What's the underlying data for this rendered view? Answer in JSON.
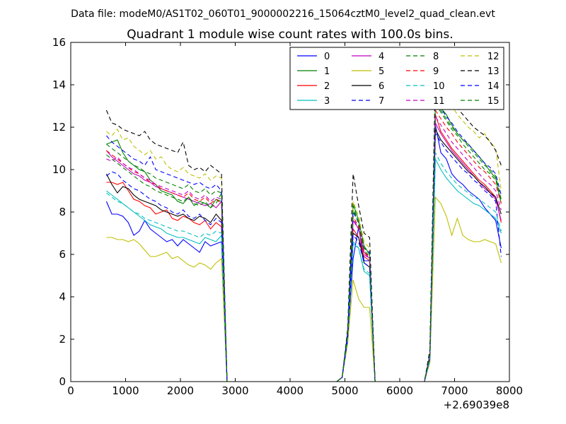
{
  "suptitle": "Data file: modeM0/AS1T02_060T01_9000002216_15064cztM0_level2_quad_clean.evt",
  "chart_data": {
    "type": "line",
    "title": "Quadrant 1 module wise count rates with 100.0s bins.",
    "xlabel": "",
    "ylabel": "",
    "x_offset_label": "+2.69039e8",
    "xlim": [
      0,
      8000
    ],
    "ylim": [
      0,
      16
    ],
    "xticks": [
      "0",
      "1000",
      "2000",
      "3000",
      "4000",
      "5000",
      "6000",
      "7000",
      "8000"
    ],
    "yticks": [
      "0",
      "2",
      "4",
      "6",
      "8",
      "10",
      "12",
      "14",
      "16"
    ],
    "legend_position": "top-right",
    "colors": [
      "#0000ff",
      "#008000",
      "#ff0000",
      "#00bfbf",
      "#bf00bf",
      "#bfbf00",
      "#000000"
    ],
    "segments": [
      {
        "start": 650,
        "count": 22
      },
      {
        "start": 4950,
        "count": 6
      },
      {
        "start": 6550,
        "count": 14
      }
    ],
    "series": [
      {
        "name": "0",
        "values": [
          8.5,
          7.9,
          7.9,
          7.8,
          7.5,
          6.9,
          7.1,
          7.6,
          7.2,
          7.0,
          6.8,
          6.6,
          6.7,
          6.4,
          6.7,
          6.5,
          6.3,
          6.1,
          6.6,
          6.4,
          6.5,
          6.6,
          0.2,
          2.0,
          5.8,
          7.3,
          5.7,
          5.7,
          1.0,
          12.1,
          10.8,
          10.5,
          9.8,
          9.5,
          9.3,
          9.0,
          8.8,
          8.6,
          8.2,
          7.9,
          7.6,
          6.3
        ]
      },
      {
        "name": "1",
        "values": [
          11.2,
          11.3,
          11.4,
          10.8,
          10.4,
          10.2,
          10.0,
          9.9,
          9.5,
          9.3,
          9.0,
          8.9,
          8.8,
          8.5,
          8.4,
          8.7,
          8.3,
          8.5,
          8.4,
          8.2,
          8.6,
          8.5,
          0.2,
          2.2,
          8.4,
          7.6,
          6.4,
          6.0,
          1.3,
          13.2,
          12.9,
          12.6,
          12.1,
          11.7,
          11.4,
          11.2,
          10.9,
          10.6,
          10.3,
          9.9,
          9.6,
          8.4
        ]
      },
      {
        "name": "2",
        "values": [
          9.4,
          9.4,
          9.3,
          9.4,
          9.0,
          8.6,
          8.5,
          8.3,
          8.2,
          7.9,
          8.0,
          8.1,
          7.7,
          7.6,
          7.8,
          7.7,
          7.5,
          7.4,
          7.6,
          7.2,
          7.5,
          7.3,
          0.2,
          2.1,
          7.2,
          6.8,
          5.9,
          5.7,
          1.2,
          12.6,
          11.8,
          11.4,
          11.0,
          10.7,
          10.4,
          10.1,
          9.8,
          9.5,
          9.3,
          9.0,
          8.7,
          7.5
        ]
      },
      {
        "name": "3",
        "values": [
          9.0,
          8.8,
          8.6,
          8.4,
          8.2,
          8.0,
          7.8,
          7.6,
          7.4,
          7.3,
          7.2,
          7.0,
          6.9,
          6.8,
          6.8,
          6.7,
          6.6,
          6.5,
          6.8,
          6.7,
          6.6,
          6.9,
          0.2,
          2.0,
          6.5,
          6.3,
          5.2,
          5.0,
          1.0,
          10.5,
          10.0,
          9.6,
          9.3,
          9.0,
          8.8,
          8.6,
          8.4,
          8.3,
          8.1,
          7.9,
          7.7,
          7.0
        ]
      },
      {
        "name": "4",
        "values": [
          10.9,
          10.6,
          10.4,
          10.2,
          10.0,
          9.8,
          9.7,
          9.5,
          9.4,
          9.2,
          9.1,
          9.0,
          8.9,
          8.8,
          8.7,
          8.6,
          8.5,
          8.4,
          8.3,
          8.4,
          8.2,
          8.5,
          0.2,
          2.2,
          7.6,
          7.2,
          6.1,
          5.8,
          1.2,
          12.2,
          11.7,
          11.3,
          10.9,
          10.6,
          10.3,
          10.0,
          9.7,
          9.4,
          9.1,
          8.9,
          8.6,
          7.6
        ]
      },
      {
        "name": "5",
        "values": [
          6.8,
          6.8,
          6.7,
          6.7,
          6.6,
          6.7,
          6.5,
          6.2,
          5.9,
          5.9,
          6.0,
          6.1,
          5.8,
          5.9,
          5.7,
          5.5,
          5.4,
          5.6,
          5.5,
          5.3,
          5.6,
          5.8,
          0.2,
          1.8,
          4.8,
          3.9,
          3.5,
          3.5,
          0.9,
          8.7,
          8.4,
          7.8,
          6.9,
          7.7,
          6.9,
          6.7,
          6.6,
          6.6,
          6.7,
          6.6,
          6.5,
          5.6
        ]
      },
      {
        "name": "6",
        "values": [
          9.8,
          9.3,
          8.9,
          9.2,
          9.1,
          8.8,
          8.6,
          8.5,
          8.4,
          8.3,
          8.1,
          8.0,
          7.9,
          7.8,
          7.9,
          7.7,
          7.6,
          7.8,
          7.7,
          7.5,
          7.9,
          7.6,
          0.2,
          2.1,
          7.0,
          6.8,
          5.6,
          5.4,
          1.1,
          11.9,
          11.4,
          11.1,
          10.8,
          10.5,
          10.2,
          9.9,
          9.7,
          9.4,
          9.2,
          8.9,
          8.7,
          7.9
        ]
      },
      {
        "name": "7",
        "values": [
          9.7,
          9.9,
          9.8,
          9.5,
          9.3,
          9.1,
          9.0,
          8.8,
          8.6,
          8.5,
          8.3,
          8.2,
          8.0,
          7.9,
          8.1,
          7.8,
          7.7,
          7.9,
          7.6,
          7.4,
          7.7,
          7.5,
          0.2,
          2.0,
          6.9,
          6.6,
          5.6,
          5.4,
          1.1,
          11.7,
          11.3,
          10.9,
          10.6,
          10.3,
          10.0,
          9.8,
          9.5,
          9.3,
          9.0,
          8.8,
          8.5,
          5.9
        ]
      },
      {
        "name": "8",
        "values": [
          10.7,
          10.5,
          10.3,
          10.1,
          9.9,
          9.7,
          9.5,
          9.3,
          9.2,
          9.0,
          8.9,
          8.8,
          8.7,
          8.6,
          8.5,
          8.7,
          8.4,
          8.3,
          8.5,
          8.2,
          8.4,
          8.9,
          0.2,
          2.3,
          8.3,
          7.4,
          6.2,
          5.9,
          1.3,
          13.1,
          12.7,
          12.3,
          11.9,
          11.6,
          11.2,
          10.9,
          10.6,
          10.3,
          10.0,
          9.8,
          9.5,
          8.5
        ]
      },
      {
        "name": "9",
        "values": [
          10.9,
          10.7,
          10.5,
          10.3,
          10.1,
          9.9,
          9.8,
          9.6,
          9.4,
          9.3,
          9.1,
          9.0,
          8.9,
          8.8,
          8.7,
          8.9,
          8.6,
          8.5,
          8.7,
          8.4,
          8.6,
          8.4,
          0.2,
          2.3,
          7.8,
          7.3,
          6.1,
          5.9,
          1.2,
          12.8,
          12.4,
          12.0,
          11.7,
          11.3,
          11.0,
          10.7,
          10.4,
          10.1,
          9.9,
          9.6,
          9.3,
          8.4
        ]
      },
      {
        "name": "10",
        "values": [
          8.9,
          8.7,
          8.5,
          8.4,
          8.2,
          8.0,
          7.9,
          7.7,
          7.6,
          7.5,
          7.4,
          7.3,
          7.2,
          7.1,
          7.1,
          7.0,
          6.9,
          6.8,
          7.0,
          6.9,
          7.1,
          7.0,
          0.2,
          2.0,
          6.6,
          6.3,
          5.3,
          5.1,
          1.0,
          10.8,
          10.3,
          9.9,
          9.6,
          9.3,
          9.1,
          8.9,
          8.7,
          8.6,
          8.4,
          8.2,
          8.0,
          7.1
        ]
      },
      {
        "name": "11",
        "values": [
          10.5,
          10.4,
          10.6,
          10.3,
          10.1,
          10.0,
          9.8,
          9.6,
          9.5,
          9.3,
          9.2,
          9.1,
          9.0,
          8.9,
          8.8,
          9.0,
          8.7,
          8.6,
          8.8,
          8.5,
          8.7,
          8.6,
          0.2,
          2.2,
          7.7,
          7.2,
          6.0,
          5.8,
          1.2,
          12.5,
          12.1,
          11.7,
          11.3,
          11.0,
          10.7,
          10.4,
          10.1,
          9.8,
          9.5,
          9.3,
          9.0,
          8.1
        ]
      },
      {
        "name": "12",
        "values": [
          11.8,
          11.6,
          11.9,
          11.4,
          11.5,
          11.1,
          10.9,
          10.7,
          10.9,
          10.5,
          10.6,
          10.2,
          10.0,
          9.9,
          10.1,
          9.8,
          9.7,
          9.6,
          9.8,
          9.5,
          9.7,
          9.6,
          0.2,
          2.4,
          8.5,
          7.8,
          6.6,
          6.3,
          1.4,
          13.6,
          13.2,
          13.6,
          13.0,
          12.6,
          12.3,
          12.0,
          11.8,
          11.5,
          11.7,
          11.3,
          11.0,
          9.0
        ]
      },
      {
        "name": "13",
        "values": [
          12.8,
          12.2,
          12.1,
          11.9,
          11.8,
          11.7,
          11.6,
          11.8,
          11.4,
          11.2,
          11.1,
          11.0,
          10.9,
          10.8,
          11.3,
          10.2,
          10.0,
          10.1,
          9.9,
          10.2,
          10.0,
          9.8,
          0.2,
          2.5,
          9.8,
          8.3,
          7.0,
          6.8,
          1.5,
          14.5,
          14.4,
          13.5,
          13.2,
          12.9,
          12.6,
          12.3,
          12.0,
          11.8,
          11.6,
          11.3,
          10.9,
          10.2
        ]
      },
      {
        "name": "14",
        "values": [
          11.6,
          11.3,
          11.1,
          10.9,
          10.7,
          10.5,
          10.4,
          10.2,
          10.6,
          10.0,
          9.9,
          9.8,
          9.7,
          9.6,
          9.5,
          9.4,
          9.3,
          9.4,
          9.2,
          9.1,
          9.3,
          9.0,
          0.2,
          2.3,
          8.0,
          7.5,
          6.3,
          6.1,
          1.3,
          13.4,
          12.9,
          12.5,
          12.2,
          11.8,
          11.5,
          11.2,
          10.9,
          10.6,
          10.3,
          10.1,
          9.8,
          8.8
        ]
      },
      {
        "name": "15",
        "values": [
          11.2,
          11.0,
          10.8,
          10.6,
          10.4,
          10.2,
          10.1,
          9.9,
          9.8,
          9.6,
          9.5,
          9.4,
          9.3,
          9.2,
          9.1,
          9.3,
          9.0,
          8.9,
          9.1,
          8.8,
          9.0,
          8.9,
          0.2,
          2.3,
          8.1,
          7.5,
          6.3,
          6.0,
          1.3,
          13.3,
          12.8,
          12.4,
          12.0,
          11.7,
          11.4,
          11.1,
          10.8,
          10.5,
          10.2,
          10.0,
          9.7,
          8.6
        ]
      }
    ]
  }
}
